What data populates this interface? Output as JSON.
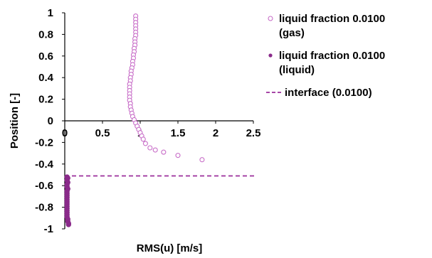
{
  "chart_data": {
    "type": "scatter",
    "title": "",
    "xlabel": "RMS(u) [m/s]",
    "ylabel": "Position [-]",
    "xlim": [
      0,
      2.5
    ],
    "ylim": [
      -1,
      1
    ],
    "x_ticks": [
      "0",
      "0.5",
      "1",
      "1.5",
      "2",
      "2.5"
    ],
    "y_ticks": [
      "1",
      "0.8",
      "0.6",
      "0.4",
      "0.2",
      "0",
      "-0.2",
      "-0.4",
      "-0.6",
      "-0.8",
      "-1"
    ],
    "grid": false,
    "legend_position": "right",
    "series": [
      {
        "name_lines": [
          "liquid fraction 0.0100",
          "(gas)"
        ],
        "marker": "open-circle",
        "color": "#c86ec8",
        "points": [
          [
            0.94,
            0.97
          ],
          [
            0.94,
            0.94
          ],
          [
            0.94,
            0.91
          ],
          [
            0.94,
            0.88
          ],
          [
            0.94,
            0.85
          ],
          [
            0.94,
            0.82
          ],
          [
            0.94,
            0.79
          ],
          [
            0.93,
            0.76
          ],
          [
            0.93,
            0.73
          ],
          [
            0.93,
            0.7
          ],
          [
            0.92,
            0.67
          ],
          [
            0.92,
            0.64
          ],
          [
            0.91,
            0.61
          ],
          [
            0.91,
            0.58
          ],
          [
            0.9,
            0.55
          ],
          [
            0.9,
            0.52
          ],
          [
            0.89,
            0.49
          ],
          [
            0.88,
            0.46
          ],
          [
            0.88,
            0.43
          ],
          [
            0.87,
            0.4
          ],
          [
            0.87,
            0.37
          ],
          [
            0.86,
            0.34
          ],
          [
            0.86,
            0.31
          ],
          [
            0.86,
            0.28
          ],
          [
            0.86,
            0.25
          ],
          [
            0.86,
            0.22
          ],
          [
            0.86,
            0.19
          ],
          [
            0.87,
            0.16
          ],
          [
            0.87,
            0.13
          ],
          [
            0.88,
            0.1
          ],
          [
            0.89,
            0.07
          ],
          [
            0.9,
            0.04
          ],
          [
            0.92,
            0.01
          ],
          [
            0.94,
            -0.02
          ],
          [
            0.96,
            -0.05
          ],
          [
            0.98,
            -0.08
          ],
          [
            1.0,
            -0.11
          ],
          [
            1.02,
            -0.14
          ],
          [
            1.04,
            -0.17
          ],
          [
            1.07,
            -0.21
          ],
          [
            1.13,
            -0.25
          ],
          [
            1.2,
            -0.27
          ],
          [
            1.31,
            -0.29
          ],
          [
            1.5,
            -0.32
          ],
          [
            1.82,
            -0.36
          ]
        ]
      },
      {
        "name_lines": [
          "liquid fraction 0.0100",
          "(liquid)"
        ],
        "marker": "filled-circle",
        "color": "#8a2a8a",
        "points": [
          [
            0.03,
            -0.52
          ],
          [
            0.04,
            -0.53
          ],
          [
            0.03,
            -0.55
          ],
          [
            0.04,
            -0.57
          ],
          [
            0.03,
            -0.59
          ],
          [
            0.03,
            -0.61
          ],
          [
            0.04,
            -0.63
          ],
          [
            0.03,
            -0.65
          ],
          [
            0.03,
            -0.67
          ],
          [
            0.03,
            -0.69
          ],
          [
            0.03,
            -0.71
          ],
          [
            0.03,
            -0.73
          ],
          [
            0.03,
            -0.75
          ],
          [
            0.03,
            -0.77
          ],
          [
            0.03,
            -0.79
          ],
          [
            0.03,
            -0.81
          ],
          [
            0.03,
            -0.83
          ],
          [
            0.03,
            -0.85
          ],
          [
            0.03,
            -0.87
          ],
          [
            0.03,
            -0.89
          ],
          [
            0.04,
            -0.91
          ],
          [
            0.04,
            -0.93
          ],
          [
            0.05,
            -0.95
          ],
          [
            0.05,
            -0.96
          ]
        ]
      }
    ],
    "reference_line": {
      "name": "interface (0.0100)",
      "orientation": "horizontal",
      "y": -0.51,
      "style": "dashed",
      "color": "#9b2d9b"
    }
  }
}
